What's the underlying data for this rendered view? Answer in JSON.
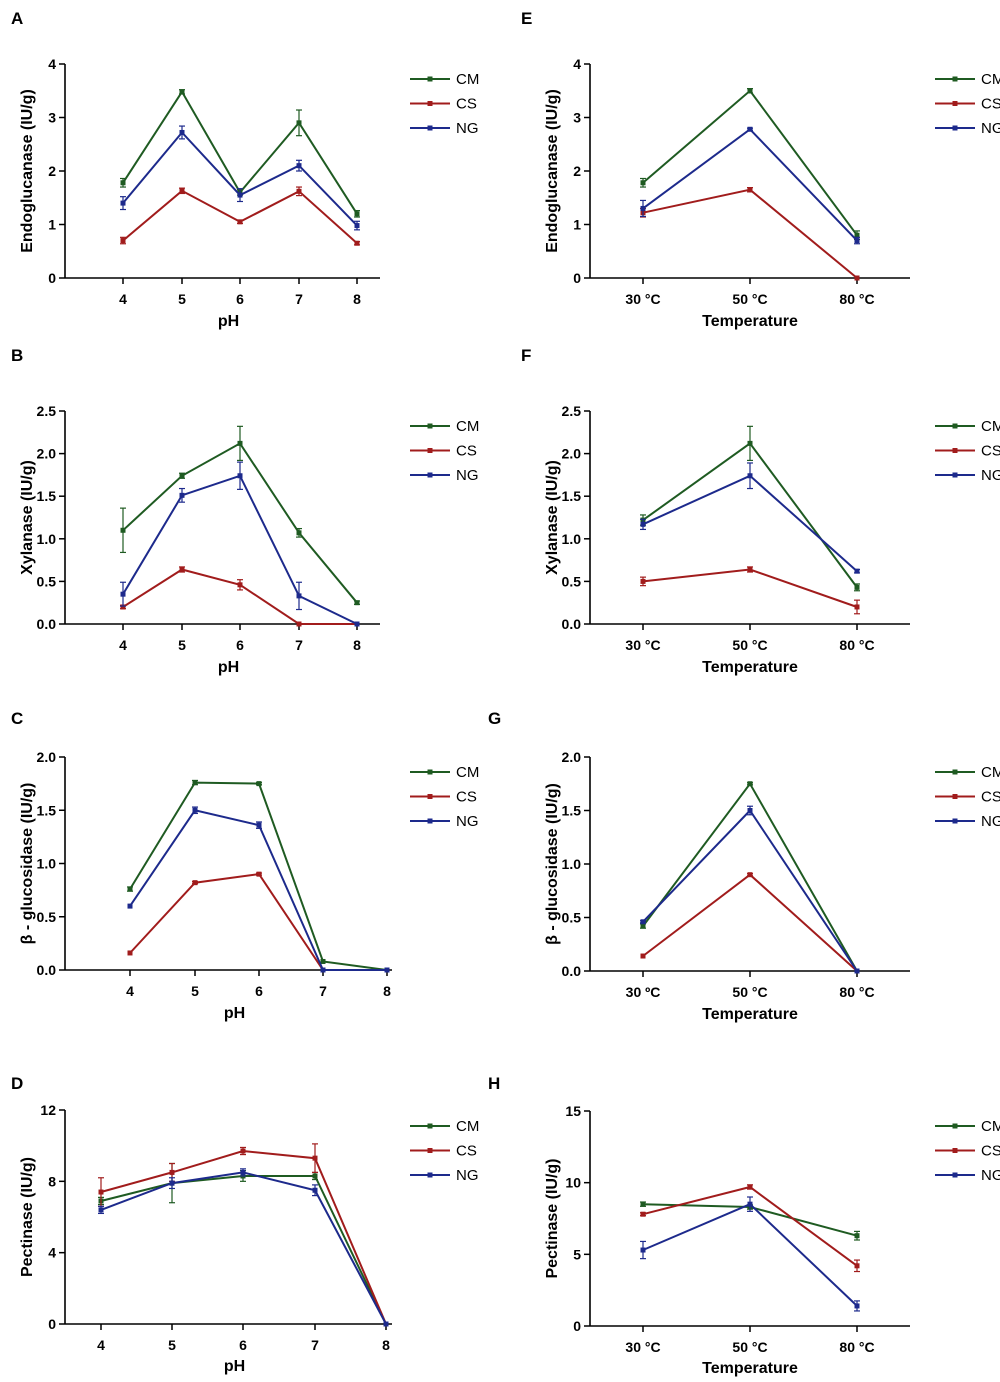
{
  "figure": {
    "colors": {
      "CM": "#1f5b22",
      "CS": "#a11c1c",
      "NG": "#1d2a8c"
    },
    "panels": [
      "A",
      "B",
      "C",
      "D",
      "E",
      "F",
      "G",
      "H"
    ]
  },
  "chart_data": [
    {
      "id": "A",
      "type": "line",
      "panel_label": "A",
      "xlabel": "pH",
      "ylabel": "Endoglucanase (IU/g)",
      "categories": [
        "4",
        "5",
        "6",
        "7",
        "8"
      ],
      "xlim": [
        3,
        8
      ],
      "ylim": [
        0,
        4
      ],
      "yticks": [
        0,
        1,
        2,
        3,
        4
      ],
      "ytick_labels": [
        "0",
        "1",
        "2",
        "3",
        "4"
      ],
      "legend": [
        "CM",
        "CS",
        "NG"
      ],
      "series": [
        {
          "name": "CM",
          "values": [
            1.78,
            3.48,
            1.6,
            2.9,
            1.2
          ],
          "errors": [
            0.08,
            0.04,
            0.05,
            0.24,
            0.06
          ]
        },
        {
          "name": "CS",
          "values": [
            0.7,
            1.63,
            1.05,
            1.62,
            0.65
          ],
          "errors": [
            0.06,
            0.05,
            0.03,
            0.08,
            0.03
          ]
        },
        {
          "name": "NG",
          "values": [
            1.4,
            2.72,
            1.55,
            2.1,
            0.98
          ],
          "errors": [
            0.12,
            0.12,
            0.12,
            0.1,
            0.08
          ]
        }
      ]
    },
    {
      "id": "E",
      "type": "line",
      "panel_label": "E",
      "xlabel": "Temperature",
      "ylabel": "Endoglucanase (IU/g)",
      "categories": [
        "30 °C",
        "50 °C",
        "80 °C"
      ],
      "xlim": [
        0.25,
        3.75
      ],
      "ylim": [
        0,
        4
      ],
      "yticks": [
        0,
        1,
        2,
        3,
        4
      ],
      "ytick_labels": [
        "0",
        "1",
        "2",
        "3",
        "4"
      ],
      "legend": [
        "CM",
        "CS",
        "NG"
      ],
      "series": [
        {
          "name": "CM",
          "values": [
            1.78,
            3.5,
            0.8
          ],
          "errors": [
            0.08,
            0.04,
            0.08
          ]
        },
        {
          "name": "CS",
          "values": [
            1.22,
            1.65,
            0.0
          ],
          "errors": [
            0.08,
            0.04,
            0.0
          ]
        },
        {
          "name": "NG",
          "values": [
            1.3,
            2.78,
            0.7
          ],
          "errors": [
            0.15,
            0.02,
            0.06
          ]
        }
      ]
    },
    {
      "id": "B",
      "type": "line",
      "panel_label": "B",
      "xlabel": "pH",
      "ylabel": "Xylanase  (IU/g)",
      "categories": [
        "4",
        "5",
        "6",
        "7",
        "8"
      ],
      "xlim": [
        3,
        8
      ],
      "ylim": [
        0,
        2.5
      ],
      "yticks": [
        0,
        0.5,
        1,
        1.5,
        2,
        2.5
      ],
      "ytick_labels": [
        "0.0",
        "0.5",
        "1.0",
        "1.5",
        "2.0",
        "2.5"
      ],
      "legend": [
        "CM",
        "CS",
        "NG"
      ],
      "series": [
        {
          "name": "CM",
          "values": [
            1.1,
            1.74,
            2.12,
            1.07,
            0.25
          ],
          "errors": [
            0.26,
            0.03,
            0.2,
            0.05,
            0.02
          ]
        },
        {
          "name": "CS",
          "values": [
            0.2,
            0.64,
            0.46,
            0.0,
            0.0
          ],
          "errors": [
            0.02,
            0.03,
            0.06,
            0.0,
            0.0
          ]
        },
        {
          "name": "NG",
          "values": [
            0.35,
            1.51,
            1.74,
            0.33,
            0.0
          ],
          "errors": [
            0.14,
            0.08,
            0.16,
            0.16,
            0.0
          ]
        }
      ]
    },
    {
      "id": "F",
      "type": "line",
      "panel_label": "F",
      "xlabel": "Temperature",
      "ylabel": "Xylanase  (IU/g)",
      "categories": [
        "30 °C",
        "50 °C",
        "80 °C"
      ],
      "xlim": [
        0.25,
        3.75
      ],
      "ylim": [
        0,
        2.5
      ],
      "yticks": [
        0,
        0.5,
        1,
        1.5,
        2,
        2.5
      ],
      "ytick_labels": [
        "0.0",
        "0.5",
        "1.0",
        "1.5",
        "2.0",
        "2.5"
      ],
      "legend": [
        "CM",
        "CS",
        "NG"
      ],
      "series": [
        {
          "name": "CM",
          "values": [
            1.22,
            2.12,
            0.43
          ],
          "errors": [
            0.06,
            0.2,
            0.04
          ]
        },
        {
          "name": "CS",
          "values": [
            0.5,
            0.64,
            0.2
          ],
          "errors": [
            0.05,
            0.03,
            0.08
          ]
        },
        {
          "name": "NG",
          "values": [
            1.17,
            1.74,
            0.62
          ],
          "errors": [
            0.06,
            0.15,
            0.02
          ]
        }
      ]
    },
    {
      "id": "C",
      "type": "line",
      "panel_label": "C",
      "xlabel": "pH",
      "ylabel": "β - glucosidase  (IU/g)",
      "categories": [
        "4",
        "5",
        "6",
        "7",
        "8"
      ],
      "xlim": [
        3,
        8
      ],
      "ylim": [
        0,
        2
      ],
      "yticks": [
        0,
        0.5,
        1,
        1.5,
        2
      ],
      "ytick_labels": [
        "0.0",
        "0.5",
        "1.0",
        "1.5",
        "2.0"
      ],
      "legend": [
        "CM",
        "CS",
        "NG"
      ],
      "series": [
        {
          "name": "CM",
          "values": [
            0.76,
            1.76,
            1.75,
            0.08,
            0.0
          ],
          "errors": [
            0.02,
            0.02,
            0.01,
            0.0,
            0.0
          ]
        },
        {
          "name": "CS",
          "values": [
            0.16,
            0.82,
            0.9,
            0.0,
            0.0
          ],
          "errors": [
            0.0,
            0.01,
            0.01,
            0.0,
            0.0
          ]
        },
        {
          "name": "NG",
          "values": [
            0.6,
            1.5,
            1.36,
            0.0,
            0.0
          ],
          "errors": [
            0.0,
            0.03,
            0.03,
            0.0,
            0.0
          ]
        }
      ]
    },
    {
      "id": "G",
      "type": "line",
      "panel_label": "G",
      "xlabel": "Temperature",
      "ylabel": "β - glucosidase  (IU/g)",
      "categories": [
        "30 ºC",
        "50 °C",
        "80 °C"
      ],
      "xlim": [
        0.25,
        3.75
      ],
      "ylim": [
        0,
        2
      ],
      "yticks": [
        0,
        0.5,
        1,
        1.5,
        2
      ],
      "ytick_labels": [
        "0.0",
        "0.5",
        "1.0",
        "1.5",
        "2.0"
      ],
      "legend": [
        "CM",
        "CS",
        "NG"
      ],
      "series": [
        {
          "name": "CM",
          "values": [
            0.42,
            1.75,
            0.0
          ],
          "errors": [
            0.02,
            0.01,
            0.0
          ]
        },
        {
          "name": "CS",
          "values": [
            0.14,
            0.9,
            0.0
          ],
          "errors": [
            0.0,
            0.01,
            0.0
          ]
        },
        {
          "name": "NG",
          "values": [
            0.46,
            1.5,
            0.0
          ],
          "errors": [
            0.01,
            0.04,
            0.0
          ]
        }
      ]
    },
    {
      "id": "D",
      "type": "line",
      "panel_label": "D",
      "xlabel": "pH",
      "ylabel": "Pectinase (IU/g)",
      "categories": [
        "4",
        "5",
        "6",
        "7",
        "8"
      ],
      "xlim": [
        3.7,
        8
      ],
      "ylim": [
        0,
        12
      ],
      "yticks": [
        0,
        4,
        8,
        12
      ],
      "ytick_labels": [
        "0",
        "4",
        "8",
        "12"
      ],
      "legend": [
        "CM",
        "CS",
        "NG"
      ],
      "series": [
        {
          "name": "CM",
          "values": [
            6.9,
            7.9,
            8.3,
            8.3,
            0.0
          ],
          "errors": [
            0.2,
            1.1,
            0.3,
            0.2,
            0.0
          ]
        },
        {
          "name": "CS",
          "values": [
            7.4,
            8.5,
            9.7,
            9.3,
            0.0
          ],
          "errors": [
            0.8,
            0.5,
            0.2,
            0.8,
            0.0
          ]
        },
        {
          "name": "NG",
          "values": [
            6.4,
            7.9,
            8.5,
            7.5,
            0.0
          ],
          "errors": [
            0.2,
            0.3,
            0.2,
            0.3,
            0.0
          ]
        }
      ]
    },
    {
      "id": "H",
      "type": "line",
      "panel_label": "H",
      "xlabel": "Temperature",
      "ylabel": "Pectinase (IU/g)",
      "categories": [
        "30 °C",
        "50 °C",
        "80 °C"
      ],
      "xlim": [
        0.25,
        3.75
      ],
      "ylim": [
        0,
        15
      ],
      "yticks": [
        0,
        5,
        10,
        15
      ],
      "ytick_labels": [
        "0",
        "5",
        "10",
        "15"
      ],
      "legend": [
        "CM",
        "CS",
        "NG"
      ],
      "series": [
        {
          "name": "CM",
          "values": [
            8.5,
            8.3,
            6.3
          ],
          "errors": [
            0.15,
            0.15,
            0.3
          ]
        },
        {
          "name": "CS",
          "values": [
            7.8,
            9.7,
            4.2
          ],
          "errors": [
            0.1,
            0.15,
            0.4
          ]
        },
        {
          "name": "NG",
          "values": [
            5.3,
            8.5,
            1.4
          ],
          "errors": [
            0.6,
            0.5,
            0.35
          ]
        }
      ]
    }
  ]
}
